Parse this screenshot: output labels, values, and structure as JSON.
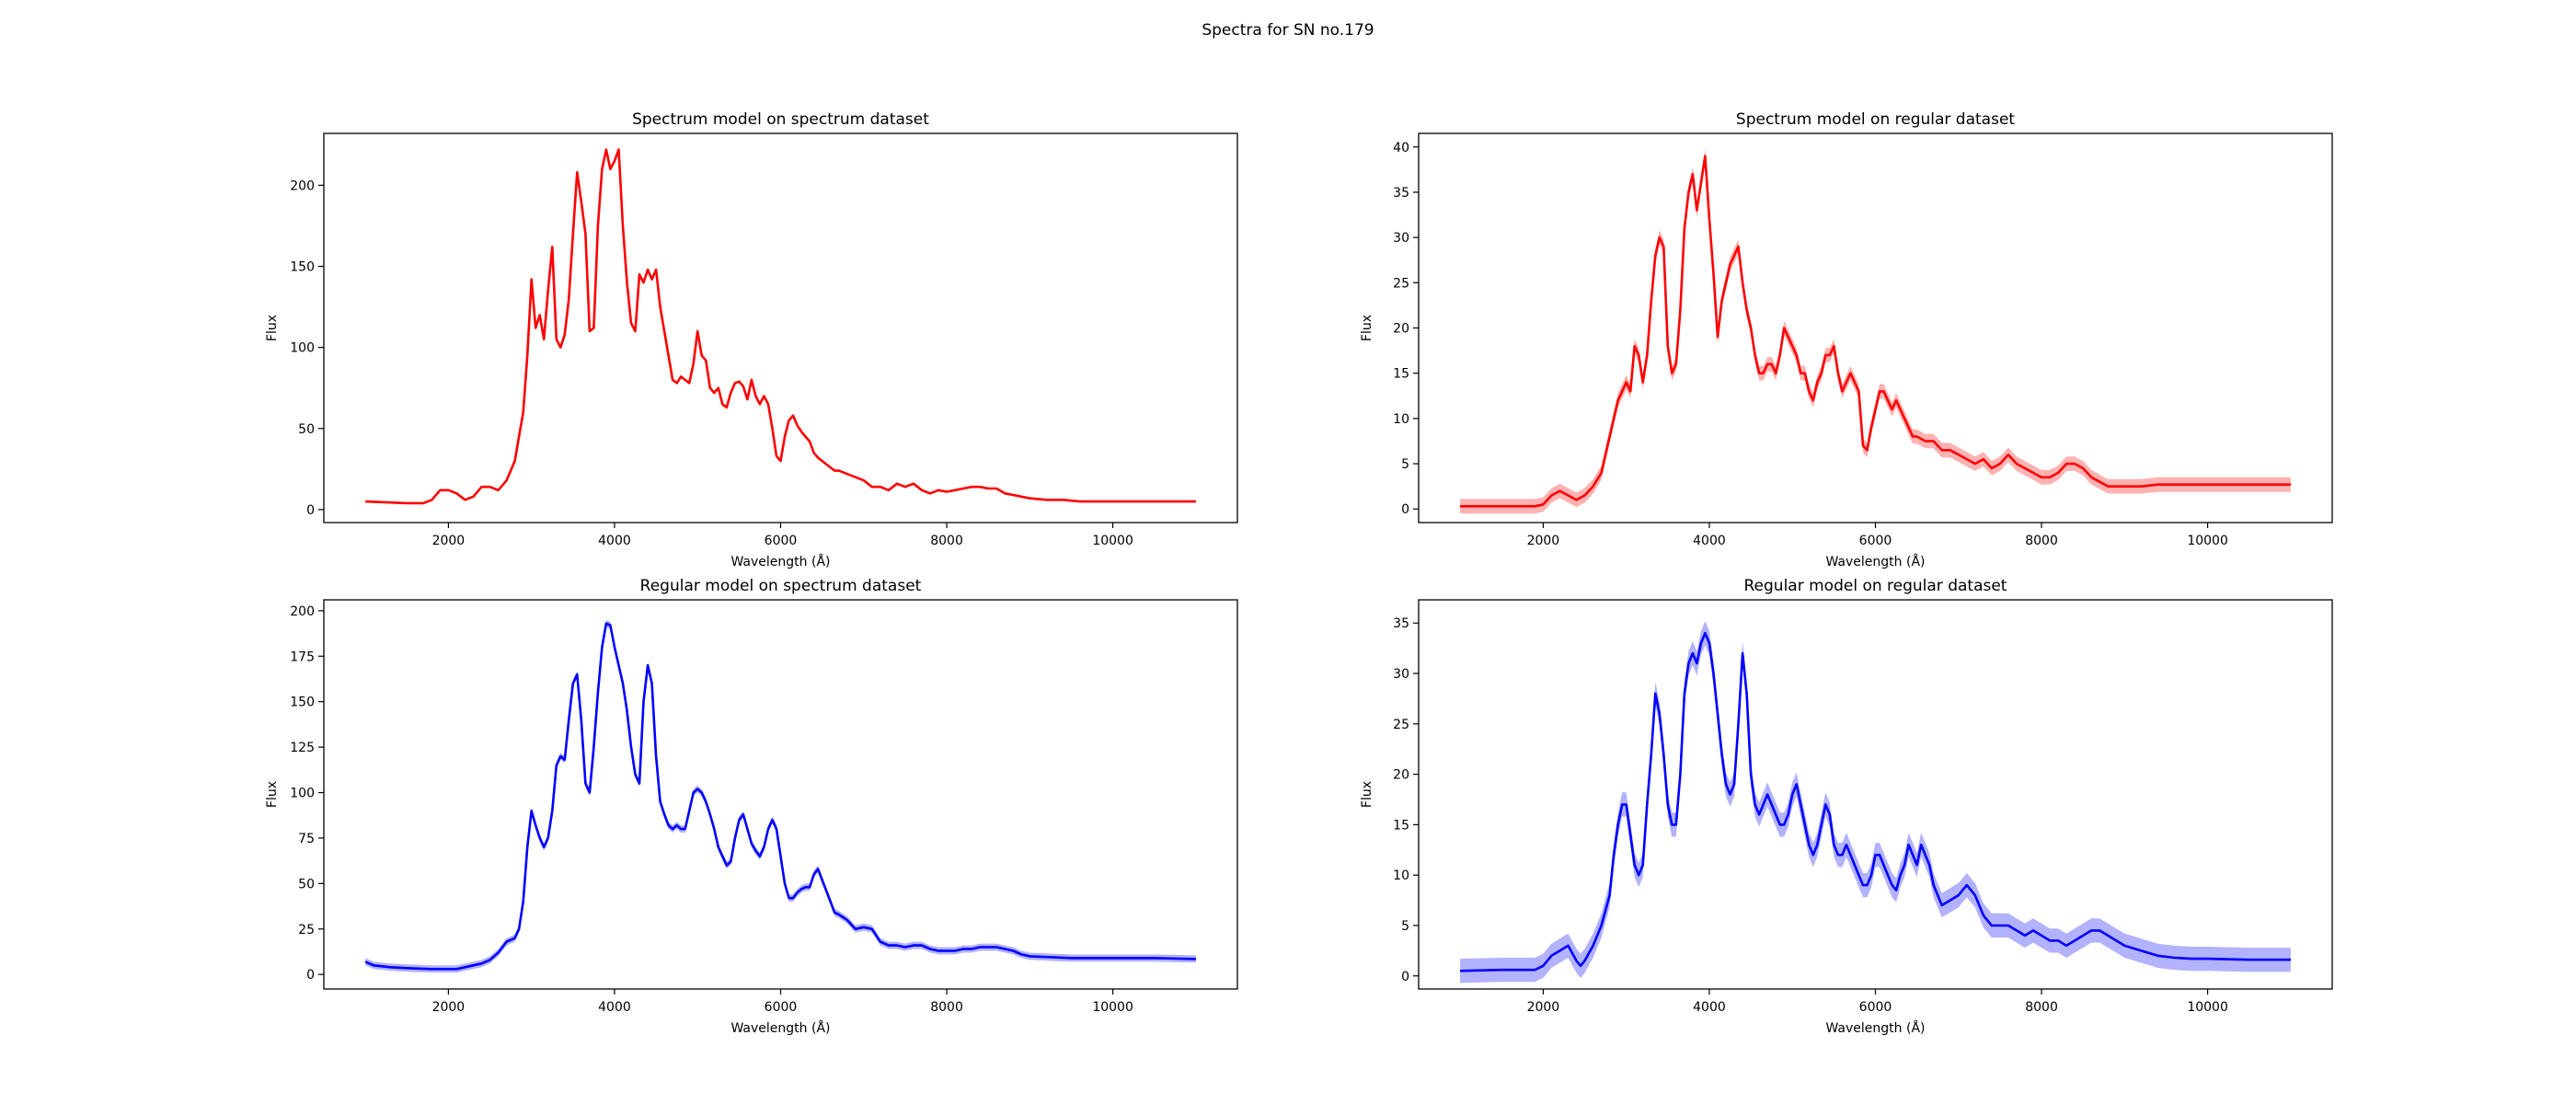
{
  "figure": {
    "title": "Spectra for SN no.179"
  },
  "chart_data": [
    {
      "type": "line",
      "title": "Spectrum model on spectrum dataset",
      "xlabel": "Wavelength (Å)",
      "ylabel": "Flux",
      "color": "#ff0000",
      "band": false,
      "xlim": [
        500,
        11500
      ],
      "ylim": [
        -8,
        232
      ],
      "xticks": [
        2000,
        4000,
        6000,
        8000,
        10000
      ],
      "yticks": [
        0,
        50,
        100,
        150,
        200
      ],
      "series": [
        {
          "x": [
            1000,
            1500,
            1700,
            1800,
            1900,
            2000,
            2100,
            2200,
            2300,
            2400,
            2500,
            2600,
            2700,
            2800,
            2850,
            2900,
            2950,
            3000,
            3050,
            3100,
            3150,
            3200,
            3250,
            3300,
            3350,
            3400,
            3450,
            3500,
            3550,
            3600,
            3650,
            3700,
            3750,
            3800,
            3850,
            3900,
            3950,
            4000,
            4050,
            4100,
            4150,
            4200,
            4250,
            4300,
            4350,
            4400,
            4450,
            4500,
            4550,
            4600,
            4650,
            4700,
            4750,
            4800,
            4850,
            4900,
            4950,
            5000,
            5050,
            5100,
            5150,
            5200,
            5250,
            5300,
            5350,
            5400,
            5450,
            5500,
            5550,
            5600,
            5650,
            5700,
            5750,
            5800,
            5850,
            5900,
            5950,
            6000,
            6050,
            6100,
            6150,
            6200,
            6250,
            6300,
            6350,
            6400,
            6450,
            6500,
            6550,
            6600,
            6650,
            6700,
            6800,
            6900,
            7000,
            7100,
            7200,
            7300,
            7400,
            7500,
            7600,
            7700,
            7800,
            7900,
            8000,
            8100,
            8200,
            8300,
            8400,
            8500,
            8600,
            8700,
            8800,
            8900,
            9000,
            9200,
            9400,
            9600,
            9800,
            10000,
            10500,
            11000
          ],
          "y": [
            5,
            4,
            4,
            6,
            12,
            12,
            10,
            6,
            8,
            14,
            14,
            12,
            18,
            30,
            45,
            60,
            95,
            142,
            112,
            120,
            105,
            135,
            162,
            105,
            100,
            108,
            130,
            170,
            208,
            190,
            170,
            110,
            112,
            175,
            210,
            222,
            210,
            215,
            222,
            175,
            140,
            115,
            110,
            145,
            140,
            148,
            142,
            148,
            125,
            110,
            95,
            80,
            78,
            82,
            80,
            78,
            90,
            110,
            95,
            92,
            75,
            72,
            75,
            65,
            63,
            72,
            78,
            79,
            76,
            68,
            80,
            70,
            65,
            70,
            65,
            50,
            33,
            30,
            45,
            55,
            58,
            52,
            48,
            45,
            42,
            35,
            32,
            30,
            28,
            26,
            24,
            24,
            22,
            20,
            18,
            14,
            14,
            12,
            16,
            14,
            16,
            12,
            10,
            12,
            11,
            12,
            13,
            14,
            14,
            13,
            13,
            10,
            9,
            8,
            7,
            6,
            6,
            5,
            5,
            5,
            5,
            5
          ]
        }
      ]
    },
    {
      "type": "line",
      "title": "Spectrum model on regular dataset",
      "xlabel": "Wavelength (Å)",
      "ylabel": "Flux",
      "color": "#ff0000",
      "band": true,
      "xlim": [
        500,
        11500
      ],
      "ylim": [
        -1.5,
        41.5
      ],
      "xticks": [
        2000,
        4000,
        6000,
        8000,
        10000
      ],
      "yticks": [
        0,
        5,
        10,
        15,
        20,
        25,
        30,
        35,
        40
      ],
      "series": [
        {
          "x": [
            1000,
            1500,
            1900,
            2000,
            2100,
            2200,
            2300,
            2400,
            2500,
            2600,
            2700,
            2800,
            2900,
            3000,
            3050,
            3100,
            3150,
            3200,
            3250,
            3300,
            3350,
            3400,
            3450,
            3500,
            3550,
            3600,
            3650,
            3700,
            3750,
            3800,
            3850,
            3900,
            3950,
            4000,
            4050,
            4100,
            4150,
            4200,
            4250,
            4300,
            4350,
            4400,
            4450,
            4500,
            4550,
            4600,
            4650,
            4700,
            4750,
            4800,
            4850,
            4900,
            4950,
            5000,
            5050,
            5100,
            5150,
            5200,
            5250,
            5300,
            5350,
            5400,
            5450,
            5500,
            5550,
            5600,
            5650,
            5700,
            5750,
            5800,
            5850,
            5900,
            5950,
            6000,
            6050,
            6100,
            6150,
            6200,
            6250,
            6300,
            6350,
            6400,
            6450,
            6500,
            6600,
            6700,
            6800,
            6900,
            7000,
            7100,
            7200,
            7300,
            7400,
            7500,
            7600,
            7700,
            7800,
            7900,
            8000,
            8100,
            8200,
            8300,
            8400,
            8500,
            8600,
            8700,
            8800,
            8900,
            9000,
            9200,
            9400,
            9600,
            10000,
            10500,
            11000
          ],
          "y": [
            0.3,
            0.3,
            0.3,
            0.5,
            1.5,
            2,
            1.5,
            1,
            1.5,
            2.5,
            4,
            8,
            12,
            14,
            13,
            18,
            17,
            14,
            17,
            23,
            28,
            30,
            29,
            18,
            15,
            16,
            22,
            31,
            35,
            37,
            33,
            36,
            39,
            32,
            26,
            19,
            23,
            25,
            27,
            28,
            29,
            25,
            22,
            20,
            17,
            15,
            15,
            16,
            16,
            15,
            17,
            20,
            19,
            18,
            17,
            15,
            15,
            13,
            12,
            14,
            15,
            17,
            17,
            18,
            15,
            13,
            14,
            15,
            14,
            13,
            7,
            6.5,
            9,
            11,
            13,
            13,
            12,
            11,
            12,
            11,
            10,
            9,
            8,
            8,
            7.5,
            7.5,
            6.5,
            6.5,
            6,
            5.5,
            5,
            5.5,
            4.5,
            5,
            6,
            5,
            4.5,
            4,
            3.5,
            3.5,
            4,
            5,
            5,
            4.5,
            3.5,
            3,
            2.5,
            2.5,
            2.5,
            2.5,
            2.7,
            2.7,
            2.7,
            2.7,
            2.7
          ],
          "band_width": 0.8
        }
      ]
    },
    {
      "type": "line",
      "title": "Regular model on spectrum dataset",
      "xlabel": "Wavelength (Å)",
      "ylabel": "Flux",
      "color": "#0000ff",
      "band": true,
      "xlim": [
        500,
        11500
      ],
      "ylim": [
        -8,
        206
      ],
      "xticks": [
        2000,
        4000,
        6000,
        8000,
        10000
      ],
      "yticks": [
        0,
        25,
        50,
        75,
        100,
        125,
        150,
        175,
        200
      ],
      "series": [
        {
          "x": [
            1000,
            1100,
            1300,
            1500,
            1800,
            2000,
            2100,
            2200,
            2300,
            2400,
            2500,
            2600,
            2700,
            2800,
            2850,
            2900,
            2950,
            3000,
            3050,
            3100,
            3150,
            3200,
            3250,
            3300,
            3350,
            3400,
            3450,
            3500,
            3550,
            3600,
            3650,
            3700,
            3750,
            3800,
            3850,
            3900,
            3950,
            4000,
            4050,
            4100,
            4150,
            4200,
            4250,
            4300,
            4350,
            4400,
            4450,
            4500,
            4550,
            4600,
            4650,
            4700,
            4750,
            4800,
            4850,
            4900,
            4950,
            5000,
            5050,
            5100,
            5150,
            5200,
            5250,
            5300,
            5350,
            5400,
            5450,
            5500,
            5550,
            5600,
            5650,
            5700,
            5750,
            5800,
            5850,
            5900,
            5950,
            6000,
            6050,
            6100,
            6150,
            6200,
            6250,
            6300,
            6350,
            6400,
            6450,
            6500,
            6550,
            6600,
            6650,
            6700,
            6800,
            6900,
            7000,
            7100,
            7200,
            7300,
            7400,
            7500,
            7600,
            7700,
            7800,
            7900,
            8000,
            8100,
            8200,
            8300,
            8400,
            8500,
            8600,
            8700,
            8800,
            8900,
            9000,
            9500,
            10000,
            10500,
            11000
          ],
          "y": [
            7,
            5,
            4,
            3.5,
            3,
            3,
            3,
            4,
            5,
            6,
            8,
            12,
            18,
            20,
            25,
            40,
            70,
            90,
            82,
            75,
            70,
            75,
            90,
            115,
            120,
            118,
            140,
            160,
            165,
            140,
            105,
            100,
            125,
            155,
            180,
            193,
            192,
            180,
            170,
            160,
            145,
            125,
            110,
            105,
            150,
            170,
            160,
            120,
            95,
            88,
            82,
            80,
            82,
            80,
            80,
            90,
            100,
            102,
            100,
            95,
            88,
            80,
            70,
            65,
            60,
            62,
            75,
            85,
            88,
            80,
            72,
            68,
            65,
            70,
            80,
            85,
            80,
            65,
            50,
            42,
            42,
            45,
            47,
            48,
            48,
            55,
            58,
            52,
            46,
            40,
            34,
            33,
            30,
            25,
            26,
            25,
            18,
            16,
            16,
            15,
            16,
            16,
            14,
            13,
            13,
            13,
            14,
            14,
            15,
            15,
            15,
            14,
            13,
            11,
            10,
            9,
            9,
            9,
            8.5
          ],
          "band_width": 2
        }
      ]
    },
    {
      "type": "line",
      "title": "Regular model on regular dataset",
      "xlabel": "Wavelength (Å)",
      "ylabel": "Flux",
      "color": "#0000ff",
      "band": true,
      "xlim": [
        500,
        11500
      ],
      "ylim": [
        -1.3,
        37.3
      ],
      "xticks": [
        2000,
        4000,
        6000,
        8000,
        10000
      ],
      "yticks": [
        0,
        5,
        10,
        15,
        20,
        25,
        30,
        35
      ],
      "series": [
        {
          "x": [
            1000,
            1500,
            1900,
            2000,
            2100,
            2200,
            2300,
            2400,
            2450,
            2500,
            2600,
            2700,
            2800,
            2850,
            2900,
            2950,
            3000,
            3050,
            3100,
            3150,
            3200,
            3250,
            3300,
            3350,
            3400,
            3450,
            3500,
            3550,
            3600,
            3650,
            3700,
            3750,
            3800,
            3850,
            3900,
            3950,
            4000,
            4050,
            4100,
            4150,
            4200,
            4250,
            4300,
            4350,
            4400,
            4450,
            4500,
            4550,
            4600,
            4650,
            4700,
            4750,
            4800,
            4850,
            4900,
            4950,
            5000,
            5050,
            5100,
            5150,
            5200,
            5250,
            5300,
            5350,
            5400,
            5450,
            5500,
            5550,
            5600,
            5650,
            5700,
            5750,
            5800,
            5850,
            5900,
            5950,
            6000,
            6050,
            6100,
            6150,
            6200,
            6250,
            6300,
            6350,
            6400,
            6450,
            6500,
            6550,
            6600,
            6650,
            6700,
            6800,
            6900,
            7000,
            7100,
            7200,
            7300,
            7400,
            7500,
            7600,
            7700,
            7800,
            7900,
            8000,
            8100,
            8200,
            8300,
            8400,
            8500,
            8600,
            8700,
            8800,
            8900,
            9000,
            9200,
            9400,
            9600,
            9800,
            10000,
            10500,
            11000
          ],
          "y": [
            0.5,
            0.6,
            0.6,
            1,
            2,
            2.5,
            3,
            1.5,
            1,
            1.5,
            3,
            5,
            8,
            12,
            15,
            17,
            17,
            14,
            11,
            10,
            11,
            17,
            22,
            28,
            26,
            22,
            17,
            15,
            15,
            20,
            28,
            31,
            32,
            31,
            33,
            34,
            33,
            30,
            26,
            22,
            19,
            18,
            19,
            25,
            32,
            28,
            20,
            17,
            16,
            17,
            18,
            17,
            16,
            15,
            15,
            16,
            18,
            19,
            17,
            15,
            13,
            12,
            13,
            15,
            17,
            16,
            13,
            12,
            12,
            13,
            12,
            11,
            10,
            9,
            9,
            10,
            12,
            12,
            11,
            10,
            9,
            8.5,
            10,
            11,
            13,
            12,
            11,
            13,
            12,
            11,
            9,
            7,
            7.5,
            8,
            9,
            8,
            6,
            5,
            5,
            5,
            4.5,
            4,
            4.5,
            4,
            3.5,
            3.5,
            3,
            3.5,
            4,
            4.5,
            4.5,
            4,
            3.5,
            3,
            2.5,
            2,
            1.8,
            1.7,
            1.7,
            1.6,
            1.6
          ],
          "band_width": 1.2
        }
      ]
    }
  ]
}
